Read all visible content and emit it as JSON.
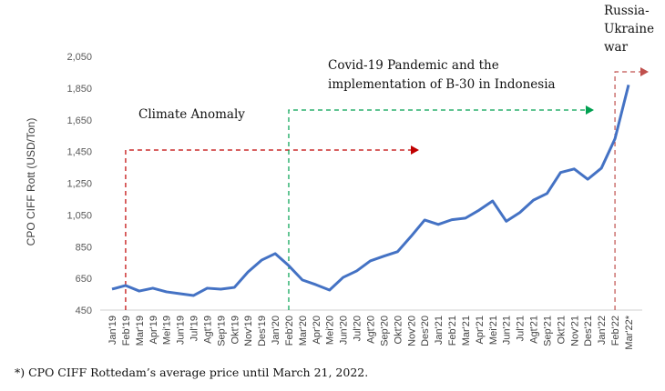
{
  "chart_data": {
    "type": "line",
    "ylabel": "CPO CIFF Rott (USD/Ton)",
    "ylim": [
      450,
      2050
    ],
    "yticks": [
      "450",
      "650",
      "850",
      "1,050",
      "1,250",
      "1,450",
      "1,650",
      "1,850",
      "2,050"
    ],
    "categories": [
      "Jan'19",
      "Feb'19",
      "Mar'19",
      "Apr'19",
      "Mei'19",
      "Jun'19",
      "Jul'19",
      "Agt'19",
      "Sep'19",
      "Okt'19",
      "Nov'19",
      "Des'19",
      "Jan'20",
      "Feb'20",
      "Mar'20",
      "Apr'20",
      "Mei'20",
      "Jun'20",
      "Jul'20",
      "Agt'20",
      "Sep'20",
      "Okt'20",
      "Nov'20",
      "Des'20",
      "Jan'21",
      "Feb'21",
      "Mar'21",
      "Apr'21",
      "Mei'21",
      "Jun'21",
      "Jul'21",
      "Agt'21",
      "Sep'21",
      "Okt'21",
      "Nov'21",
      "Des'21",
      "Jan'22",
      "Feb'22",
      "Mar'22*"
    ],
    "values": [
      582,
      605,
      570,
      588,
      565,
      553,
      542,
      588,
      582,
      593,
      690,
      765,
      806,
      730,
      640,
      610,
      576,
      656,
      697,
      760,
      790,
      818,
      915,
      1018,
      990,
      1020,
      1030,
      1080,
      1138,
      1010,
      1065,
      1143,
      1185,
      1318,
      1340,
      1275,
      1345,
      1530,
      1870
    ],
    "line_color": "#4472C4",
    "grid": false,
    "annotations": [
      {
        "text": "Climate Anomaly",
        "start": "Feb'19",
        "color": "#C00000"
      },
      {
        "text": "Covid-19 Pandemic and the implementation of B-30 in Indonesia",
        "start": "Feb'20",
        "color": "#00A050"
      },
      {
        "text": "Russia-Ukraine war",
        "start": "Feb'22",
        "color": "#C0504D"
      }
    ]
  },
  "annotations": {
    "climate": "Climate Anomaly",
    "covid_line1": "Covid-19 Pandemic and the",
    "covid_line2": "implementation of B-30 in Indonesia",
    "war_line1": "Russia-",
    "war_line2": "Ukraine",
    "war_line3": "war"
  },
  "footnote": "*) CPO CIFF Rottedam’s average price until March 21, 2022."
}
